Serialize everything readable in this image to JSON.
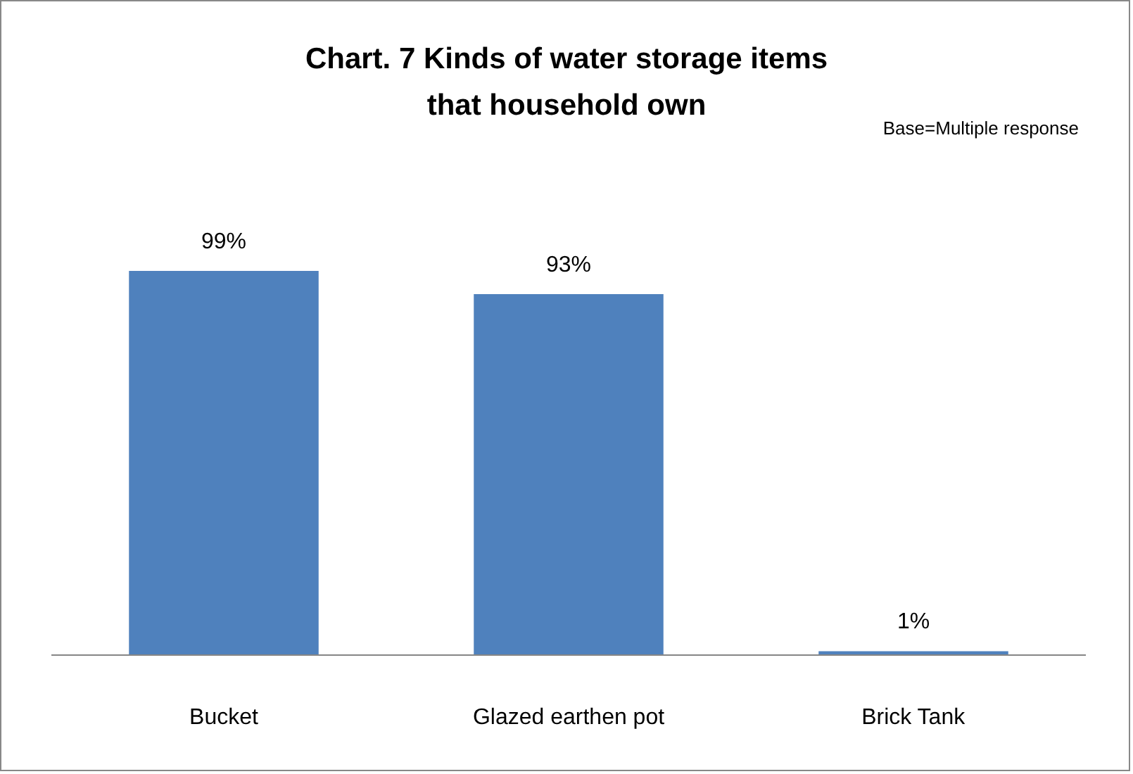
{
  "chart_data": {
    "type": "bar",
    "title": "Chart. 7 Kinds of water storage items that household own",
    "annotations": [
      "Base=Multiple response"
    ],
    "categories": [
      "Bucket",
      "Glazed earthen pot",
      "Brick Tank"
    ],
    "values": [
      99,
      93,
      1
    ],
    "value_labels": [
      "99%",
      "93%",
      "1%"
    ],
    "color": "#4f81bd",
    "tick_labels": "x",
    "grid": false
  }
}
